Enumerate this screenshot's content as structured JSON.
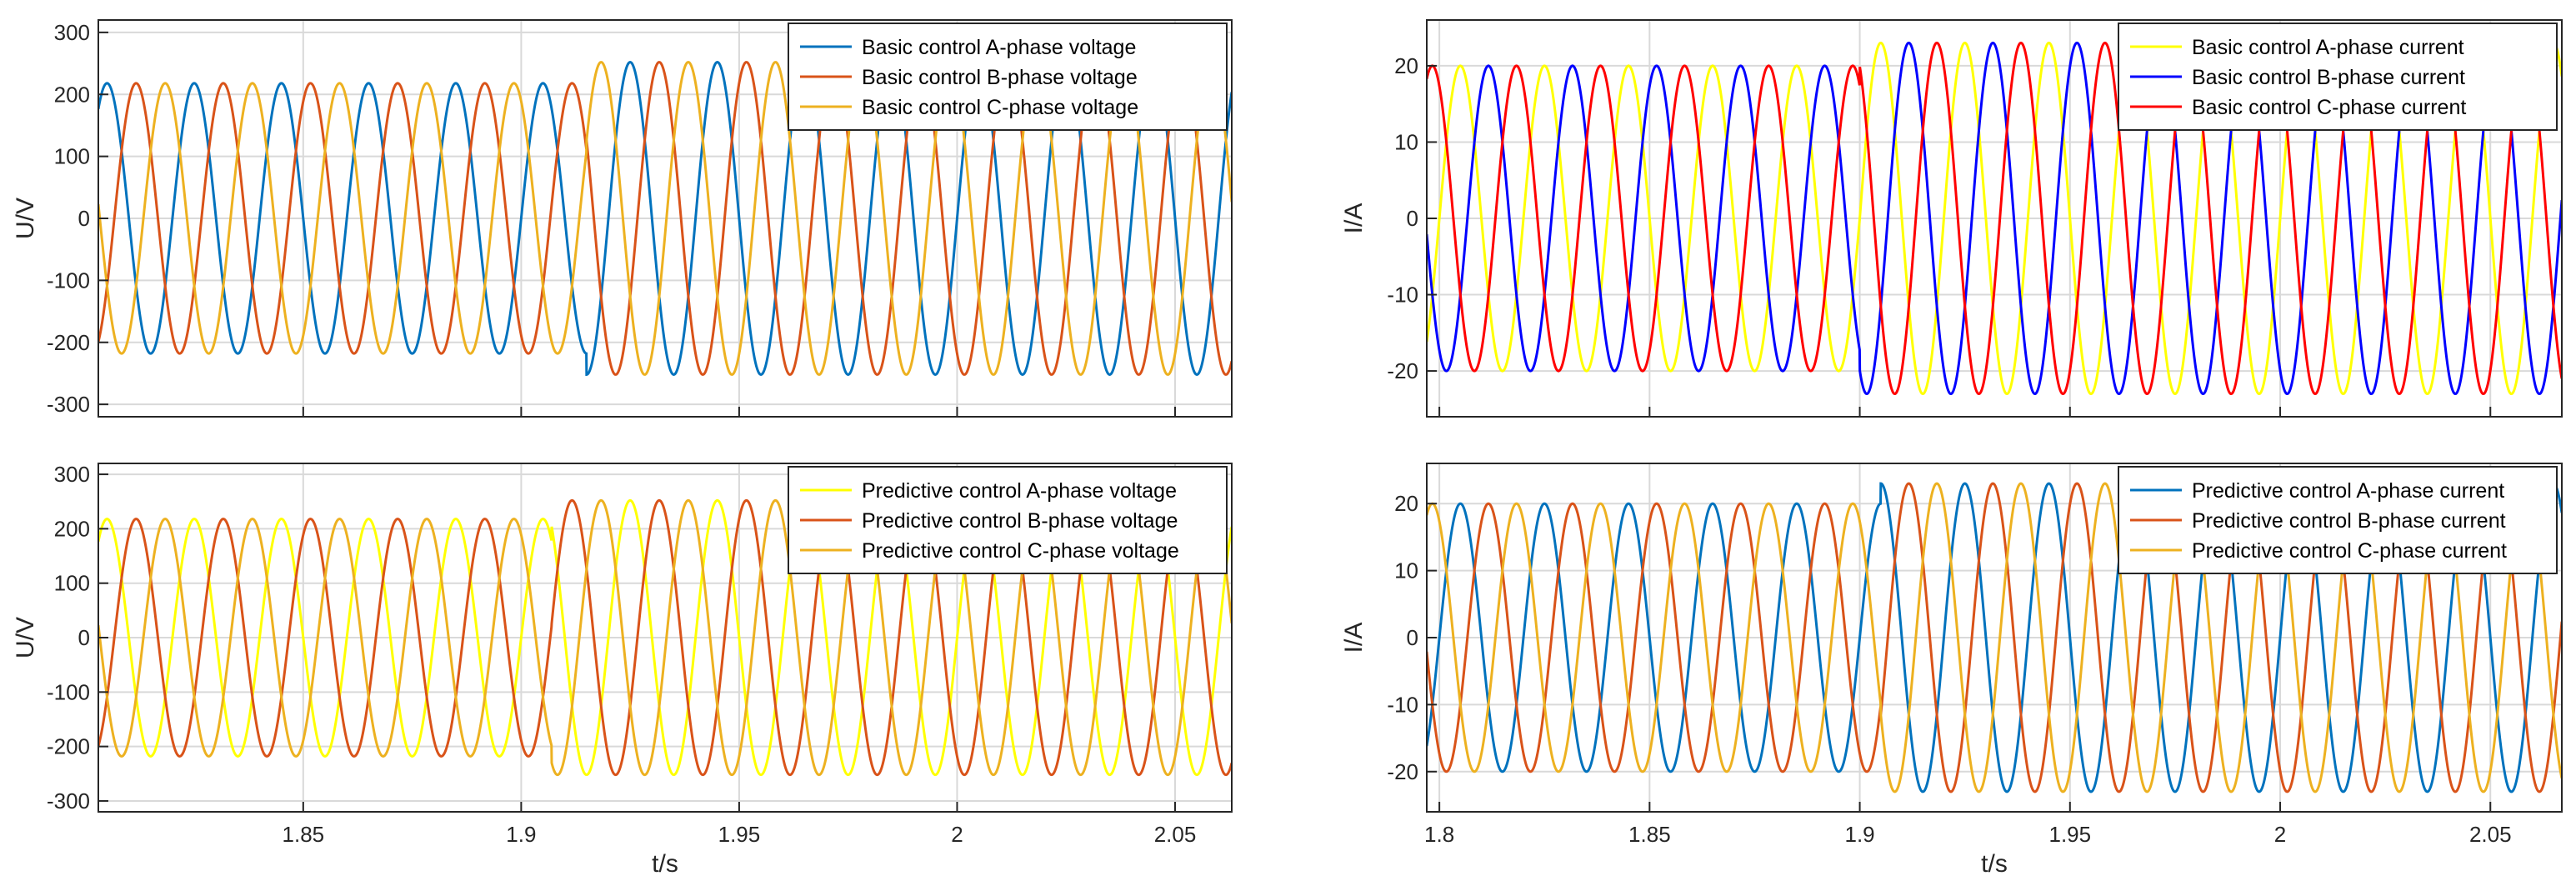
{
  "chart_data": [
    {
      "type": "line",
      "xlabel": "",
      "ylabel": "U/V",
      "xlim": [
        1.803,
        2.063
      ],
      "ylim": [
        -320,
        320
      ],
      "yticks": [
        -300,
        -200,
        -100,
        0,
        100,
        200,
        300
      ],
      "xticks": [
        1.85,
        1.9,
        1.95,
        2,
        2.05
      ],
      "xtick_labels": [],
      "xtick_label_text": [
        "1.85",
        "1.9",
        "1.95",
        "2",
        "2.05"
      ],
      "grid": true,
      "legend_position": "top-right",
      "event_time": 1.915,
      "frequency_hz": 50,
      "amplitude_before": 218,
      "amplitude_after": 252,
      "series": [
        {
          "name": "Basic control A-phase voltage",
          "color": "#0072BD",
          "phase_deg": 0
        },
        {
          "name": "Basic control B-phase voltage",
          "color": "#D95319",
          "phase_deg": -120
        },
        {
          "name": "Basic control C-phase voltage",
          "color": "#EDB120",
          "phase_deg": 120
        }
      ]
    },
    {
      "type": "line",
      "xlabel": "t/s",
      "ylabel": "U/V",
      "xlim": [
        1.803,
        2.063
      ],
      "ylim": [
        -320,
        320
      ],
      "yticks": [
        -300,
        -200,
        -100,
        0,
        100,
        200,
        300
      ],
      "xticks": [
        1.85,
        1.9,
        1.95,
        2,
        2.05
      ],
      "xtick_labels": [
        "1.85",
        "1.9",
        "1.95",
        "2",
        "2.05"
      ],
      "grid": true,
      "legend_position": "top-right",
      "event_time": 1.907,
      "frequency_hz": 50,
      "amplitude_before": 218,
      "amplitude_after": 252,
      "series": [
        {
          "name": "Predictive control A-phase voltage",
          "color": "#FFFF00",
          "phase_deg": 0
        },
        {
          "name": "Predictive control B-phase voltage",
          "color": "#D95319",
          "phase_deg": -120
        },
        {
          "name": "Predictive control C-phase voltage",
          "color": "#EDB120",
          "phase_deg": 120
        }
      ]
    },
    {
      "type": "line",
      "xlabel": "",
      "ylabel": "I/A",
      "xlim": [
        1.797,
        2.067
      ],
      "ylim": [
        -26,
        26
      ],
      "yticks": [
        -20,
        -10,
        0,
        10,
        20
      ],
      "xticks": [
        1.8,
        1.85,
        1.9,
        1.95,
        2,
        2.05
      ],
      "xtick_labels": [],
      "grid": true,
      "legend_position": "top-right",
      "event_time": 1.9,
      "frequency_hz": 50,
      "amplitude_before": 20,
      "amplitude_after": 23,
      "series": [
        {
          "name": "Basic control A-phase current",
          "color": "#FFFF00",
          "phase_deg": 0
        },
        {
          "name": "Basic control B-phase current",
          "color": "#0000FF",
          "phase_deg": -120
        },
        {
          "name": "Basic control C-phase current",
          "color": "#FF0000",
          "phase_deg": 120
        }
      ]
    },
    {
      "type": "line",
      "xlabel": "t/s",
      "ylabel": "I/A",
      "xlim": [
        1.797,
        2.067
      ],
      "ylim": [
        -26,
        26
      ],
      "yticks": [
        -20,
        -10,
        0,
        10,
        20
      ],
      "xticks": [
        1.8,
        1.85,
        1.9,
        1.95,
        2,
        2.05
      ],
      "xtick_labels": [
        "1.8",
        "1.85",
        "1.9",
        "1.95",
        "2",
        "2.05"
      ],
      "grid": true,
      "legend_position": "top-right",
      "event_time": 1.905,
      "frequency_hz": 50,
      "amplitude_before": 20,
      "amplitude_after": 23,
      "series": [
        {
          "name": "Predictive control A-phase current",
          "color": "#0072BD",
          "phase_deg": 0
        },
        {
          "name": "Predictive control B-phase current",
          "color": "#D95319",
          "phase_deg": -120
        },
        {
          "name": "Predictive control C-phase current",
          "color": "#EDB120",
          "phase_deg": 120
        }
      ]
    }
  ]
}
